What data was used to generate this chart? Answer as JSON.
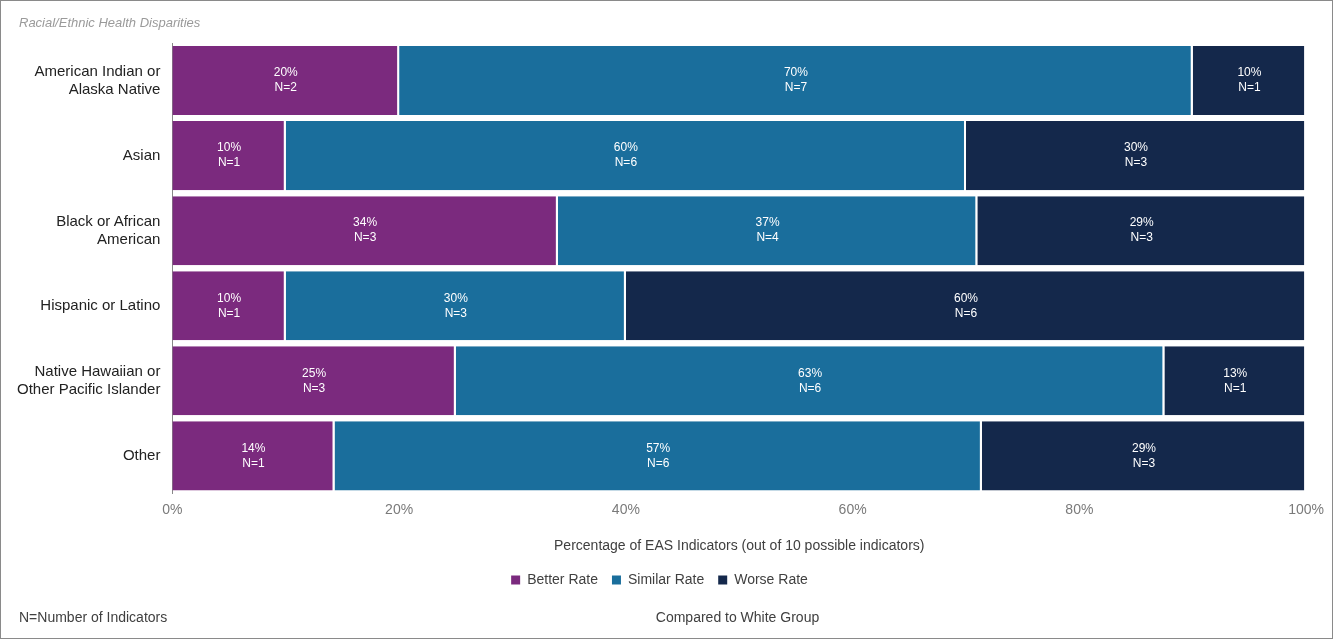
{
  "chart_data": {
    "type": "bar",
    "orientation": "horizontal",
    "stacked": true,
    "title": "Racial/Ethnic Health Disparities",
    "xlabel": "Percentage of EAS Indicators (out of 10 possible indicators)",
    "categories": [
      "American Indian or\nAlaska Native",
      "Asian",
      "Black or African\nAmerican",
      "Hispanic or Latino",
      "Native Hawaiian or\nOther Pacific Islander",
      "Other"
    ],
    "series": [
      {
        "name": "Better Rate",
        "color": "#7b2a7e",
        "values": [
          20,
          10,
          34,
          10,
          25,
          14.3
        ],
        "value_labels": [
          "20%\nN=2",
          "10%\nN=1",
          "34%\nN=3",
          "10%\nN=1",
          "25%\nN=3",
          "14%\nN=1"
        ]
      },
      {
        "name": "Similar Rate",
        "color": "#1a6e9c",
        "values": [
          70,
          60,
          37,
          30,
          62.5,
          57.1
        ],
        "value_labels": [
          "70%\nN=7",
          "60%\nN=6",
          "37%\nN=4",
          "30%\nN=3",
          "63%\nN=6",
          "57%\nN=6"
        ]
      },
      {
        "name": "Worse Rate",
        "color": "#14284b",
        "values": [
          10,
          30,
          29,
          60,
          12.5,
          28.6
        ],
        "value_labels": [
          "10%\nN=1",
          "30%\nN=3",
          "29%\nN=3",
          "60%\nN=6",
          "13%\nN=1",
          "29%\nN=3"
        ]
      }
    ],
    "xlim": [
      0,
      100
    ],
    "xticks": [
      {
        "value": 0,
        "label": "0%"
      },
      {
        "value": 20,
        "label": "20%"
      },
      {
        "value": 40,
        "label": "40%"
      },
      {
        "value": 60,
        "label": "60%"
      },
      {
        "value": 80,
        "label": "80%"
      },
      {
        "value": 100,
        "label": "100%"
      }
    ],
    "grid": false,
    "legend": "bottom",
    "annotations": [
      "N=Number of Indicators",
      "Compared to White Group"
    ]
  }
}
